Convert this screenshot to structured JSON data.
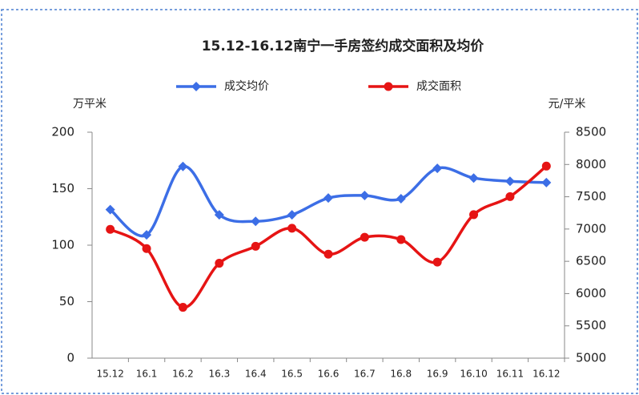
{
  "chart_data": {
    "type": "line",
    "title": "15.12-16.12南宁一手房签约成交面积及均价",
    "y_label": "万平米",
    "y2_label": "元/平米",
    "categories": [
      "15.12",
      "16.1",
      "16.2",
      "16.3",
      "16.4",
      "16.5",
      "16.6",
      "16.7",
      "16.8",
      "16.9",
      "16.10",
      "16.11",
      "16.12"
    ],
    "series": [
      {
        "name": "成交均价",
        "color": "#3c6ee6",
        "marker": "diamond",
        "axis": "y2",
        "values": [
          7300,
          6910,
          7970,
          7220,
          7120,
          7220,
          7480,
          7520,
          7470,
          7940,
          7790,
          7740,
          7720
        ]
      },
      {
        "name": "成交面积",
        "color": "#e61414",
        "marker": "circle",
        "axis": "y",
        "values": [
          114,
          97,
          45,
          84,
          99,
          115,
          92,
          107,
          105,
          85,
          127,
          143,
          170
        ]
      }
    ],
    "ylim": [
      0,
      200
    ],
    "yticks": [
      0,
      50,
      100,
      150,
      200
    ],
    "y2lim": [
      5000,
      8500
    ],
    "y2ticks": [
      5000,
      5500,
      6000,
      6500,
      7000,
      7500,
      8000,
      8500
    ],
    "smooth": true
  }
}
